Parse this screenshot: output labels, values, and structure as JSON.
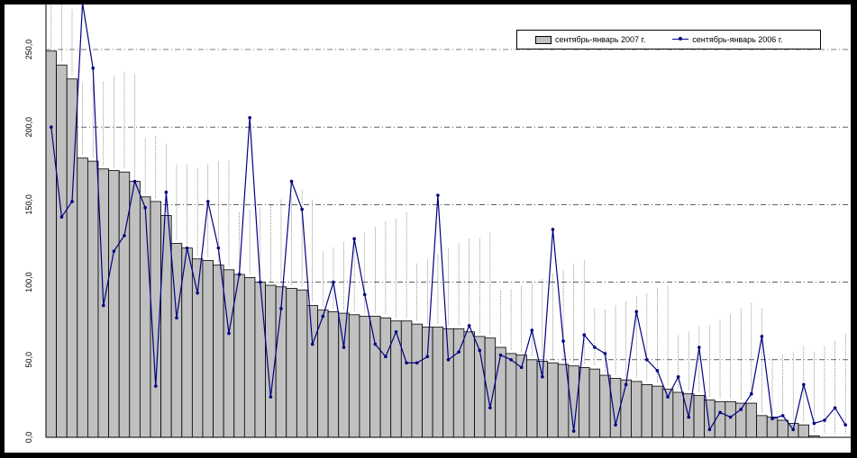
{
  "chart_data": {
    "type": "bar",
    "ylim": [
      0,
      250
    ],
    "yticks": [
      "0,0",
      "50,0",
      "100,0",
      "150,0",
      "200,0",
      "250,0"
    ],
    "grid": true,
    "legend_position": "top-right",
    "series": [
      {
        "name": "сентябрь-январь 2007 г.",
        "kind": "bar",
        "color": "#c0c0c0",
        "values": [
          249,
          240,
          231,
          180,
          178,
          173,
          172,
          171,
          165,
          155,
          152,
          143,
          125,
          122,
          115,
          114,
          111,
          108,
          105,
          103,
          100,
          98,
          97,
          96,
          95,
          85,
          82,
          81,
          80,
          79,
          78,
          78,
          77,
          75,
          75,
          73,
          71,
          71,
          70,
          70,
          68,
          65,
          64,
          58,
          54,
          53,
          50,
          49,
          48,
          47,
          46,
          45,
          44,
          40,
          38,
          37,
          36,
          34,
          33,
          31,
          29,
          28,
          27,
          24,
          23,
          23,
          22,
          22,
          14,
          13,
          11,
          9,
          8,
          1,
          0,
          0,
          0
        ]
      },
      {
        "name": "сентябрь-январь 2006 г.",
        "kind": "line",
        "color": "#000080",
        "values": [
          200,
          142,
          152,
          280,
          238,
          85,
          120,
          130,
          165,
          148,
          33,
          158,
          77,
          122,
          93,
          152,
          122,
          67,
          105,
          206,
          100,
          26,
          83,
          165,
          147,
          60,
          78,
          100,
          58,
          128,
          92,
          60,
          52,
          68,
          48,
          48,
          52,
          156,
          50,
          55,
          72,
          56,
          19,
          53,
          50,
          45,
          69,
          39,
          134,
          62,
          4,
          66,
          58,
          54,
          8,
          34,
          81,
          50,
          43,
          26,
          39,
          13,
          58,
          5,
          16,
          13,
          18,
          28,
          65,
          12,
          14,
          5,
          34,
          9,
          11,
          19,
          8
        ]
      }
    ]
  }
}
